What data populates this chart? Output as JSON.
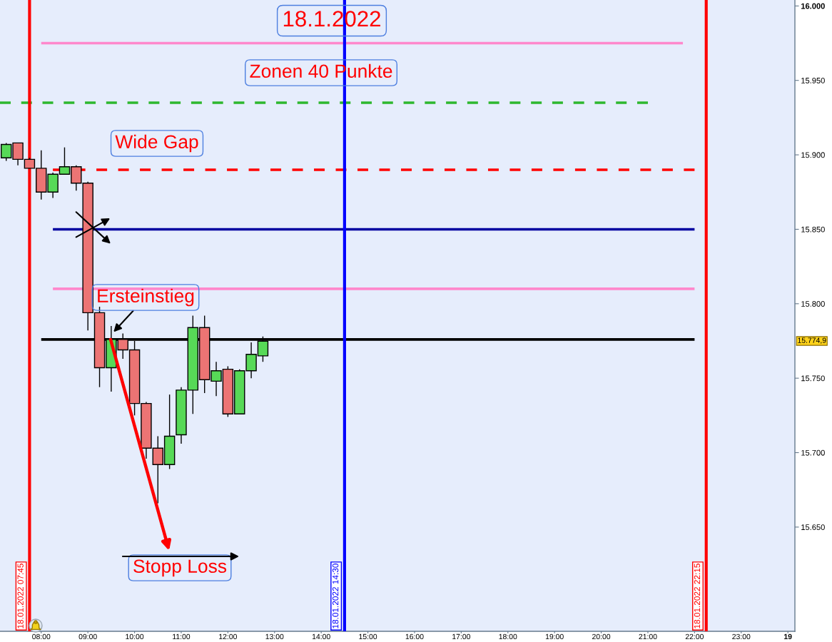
{
  "chart_data": {
    "type": "candlestick",
    "title": "18.1.2022",
    "x": [
      "2022-01-18T07:15",
      "2022-01-18T07:30",
      "2022-01-18T07:45",
      "2022-01-18T08:00",
      "2022-01-18T08:15",
      "2022-01-18T08:30",
      "2022-01-18T08:45",
      "2022-01-18T09:00",
      "2022-01-18T09:15",
      "2022-01-18T09:30",
      "2022-01-18T09:45",
      "2022-01-18T10:00",
      "2022-01-18T10:15",
      "2022-01-18T10:30",
      "2022-01-18T10:45",
      "2022-01-18T11:00",
      "2022-01-18T11:15",
      "2022-01-18T11:30",
      "2022-01-18T11:45",
      "2022-01-18T12:00",
      "2022-01-18T12:15",
      "2022-01-18T12:30",
      "2022-01-18T12:45"
    ],
    "ohlc": [
      [
        15898,
        15908,
        15896,
        15907
      ],
      [
        15908,
        15908,
        15893,
        15897
      ],
      [
        15897,
        15898,
        15891,
        15891
      ],
      [
        15891,
        15903,
        15870,
        15875
      ],
      [
        15875,
        15888,
        15871,
        15887
      ],
      [
        15887,
        15905,
        15887,
        15892
      ],
      [
        15892,
        15893,
        15876,
        15881
      ],
      [
        15881,
        15882,
        15782,
        15794
      ],
      [
        15794,
        15798,
        15744,
        15757
      ],
      [
        15757,
        15785,
        15741,
        15776
      ],
      [
        15776,
        15780,
        15763,
        15769
      ],
      [
        15769,
        15775,
        15725,
        15733
      ],
      [
        15733,
        15734,
        15696,
        15703
      ],
      [
        15703,
        15711,
        15666,
        15692
      ],
      [
        15692,
        15739,
        15689,
        15711
      ],
      [
        15712,
        15744,
        15706,
        15742
      ],
      [
        15742,
        15792,
        15726,
        15784
      ],
      [
        15784,
        15792,
        15740,
        15749
      ],
      [
        15748,
        15761,
        15738,
        15755
      ],
      [
        15756,
        15758,
        15724,
        15726
      ],
      [
        15726,
        15756,
        15726,
        15755
      ],
      [
        15755,
        15774,
        15750,
        15766
      ],
      [
        15765,
        15778,
        15761,
        15774.9
      ]
    ],
    "colors": [
      "#57d957",
      "#ec7474",
      "#ec7474",
      "#ec7474",
      "#57d957",
      "#57d957",
      "#ec7474",
      "#ec7474",
      "#ec7474",
      "#57d957",
      "#ec7474",
      "#ec7474",
      "#ec7474",
      "#ec7474",
      "#57d957",
      "#57d957",
      "#57d957",
      "#ec7474",
      "#57d957",
      "#ec7474",
      "#57d957",
      "#57d957",
      "#57d957"
    ],
    "series": [
      {
        "type": "line",
        "x": [
          "2022-01-18T08:00",
          "2022-01-18T21:45"
        ],
        "values": [
          15975,
          15975
        ],
        "color": "#ff88cc"
      },
      {
        "type": "line",
        "x": [
          "2022-01-18T07:07",
          "2022-01-18T21:00"
        ],
        "values": [
          15935,
          15935
        ],
        "color": "#2eb82e",
        "line_style": "dashed"
      },
      {
        "type": "line",
        "x": [
          "2022-01-18T08:15",
          "2022-01-18T22:00"
        ],
        "values": [
          15890,
          15890
        ],
        "color": "#ff0000",
        "line_style": "dashed"
      },
      {
        "type": "line",
        "x": [
          "2022-01-18T08:15",
          "2022-01-18T22:00"
        ],
        "values": [
          15850,
          15850
        ],
        "color": "#0000a0"
      },
      {
        "type": "line",
        "x": [
          "2022-01-18T08:15",
          "2022-01-18T22:00"
        ],
        "values": [
          15810,
          15810
        ],
        "color": "#ff88cc"
      },
      {
        "type": "line",
        "x": [
          "2022-01-18T08:00",
          "2022-01-18T22:00"
        ],
        "values": [
          15776,
          15776
        ],
        "color": "#000000"
      }
    ],
    "xlim": [
      "2022-01-18T07:07",
      "2022-01-19T00:09"
    ],
    "ylim": [
      15580,
      16004
    ],
    "xticks": [
      {
        "value": "2022-01-18T08:00",
        "label": "08:00"
      },
      {
        "value": "2022-01-18T09:00",
        "label": "09:00"
      },
      {
        "value": "2022-01-18T10:00",
        "label": "10:00"
      },
      {
        "value": "2022-01-18T11:00",
        "label": "11:00"
      },
      {
        "value": "2022-01-18T12:00",
        "label": "12:00"
      },
      {
        "value": "2022-01-18T13:00",
        "label": "13:00"
      },
      {
        "value": "2022-01-18T14:00",
        "label": "14:00"
      },
      {
        "value": "2022-01-18T15:00",
        "label": "15:00"
      },
      {
        "value": "2022-01-18T16:00",
        "label": "16:00"
      },
      {
        "value": "2022-01-18T17:00",
        "label": "17:00"
      },
      {
        "value": "2022-01-18T18:00",
        "label": "18:00"
      },
      {
        "value": "2022-01-18T19:00",
        "label": "19:00"
      },
      {
        "value": "2022-01-18T20:00",
        "label": "20:00"
      },
      {
        "value": "2022-01-18T21:00",
        "label": "21:00"
      },
      {
        "value": "2022-01-18T22:00",
        "label": "22:00"
      },
      {
        "value": "2022-01-18T23:00",
        "label": "23:00"
      },
      {
        "value": "2022-01-19T00:00",
        "label": "19"
      }
    ],
    "yticks": [
      {
        "value": 15650,
        "label": "15.650"
      },
      {
        "value": 15700,
        "label": "15.700"
      },
      {
        "value": 15750,
        "label": "15.750"
      },
      {
        "value": 15800,
        "label": "15.800"
      },
      {
        "value": 15850,
        "label": "15.850"
      },
      {
        "value": 15900,
        "label": "15.900"
      },
      {
        "value": 15950,
        "label": "15.950"
      },
      {
        "value": 16000,
        "label": "16.000"
      }
    ],
    "ref_lines": [
      {
        "axis": "x",
        "value": "2022-01-18T07:45",
        "label": "18.01.2022 07:45",
        "color": "#ff0000"
      },
      {
        "axis": "x",
        "value": "2022-01-18T14:30",
        "label": "18.01.2022 14:30",
        "color": "#0000ff"
      },
      {
        "axis": "x",
        "value": "2022-01-18T22:15",
        "label": "18.01.2022 22:15",
        "color": "#ff0000"
      }
    ],
    "annotations": [
      "Zonen 40 Punkte",
      "Wide Gap",
      {
        "text": "Ersteinstieg",
        "x": "2022-01-18T09:33",
        "y": 15781
      },
      "Stopp Loss",
      "15.774,9"
    ]
  }
}
